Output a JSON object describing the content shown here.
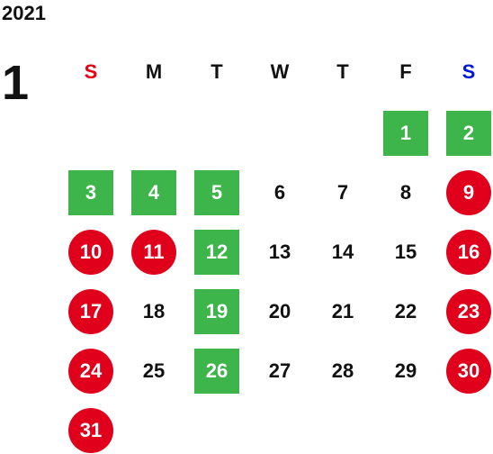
{
  "year": "2021",
  "month": "1",
  "weekdays": [
    "S",
    "M",
    "T",
    "W",
    "T",
    "F",
    "S"
  ],
  "colors": {
    "green": "#3db54a",
    "red": "#e0001b",
    "sunday": "#e60012",
    "saturday": "#0018d8"
  },
  "weeks": [
    [
      {
        "d": ""
      },
      {
        "d": ""
      },
      {
        "d": ""
      },
      {
        "d": ""
      },
      {
        "d": ""
      },
      {
        "d": "1",
        "t": "green"
      },
      {
        "d": "2",
        "t": "green"
      }
    ],
    [
      {
        "d": "3",
        "t": "green"
      },
      {
        "d": "4",
        "t": "green"
      },
      {
        "d": "5",
        "t": "green"
      },
      {
        "d": "6"
      },
      {
        "d": "7"
      },
      {
        "d": "8"
      },
      {
        "d": "9",
        "t": "red"
      }
    ],
    [
      {
        "d": "10",
        "t": "red"
      },
      {
        "d": "11",
        "t": "red"
      },
      {
        "d": "12",
        "t": "green"
      },
      {
        "d": "13"
      },
      {
        "d": "14"
      },
      {
        "d": "15"
      },
      {
        "d": "16",
        "t": "red"
      }
    ],
    [
      {
        "d": "17",
        "t": "red"
      },
      {
        "d": "18"
      },
      {
        "d": "19",
        "t": "green"
      },
      {
        "d": "20"
      },
      {
        "d": "21"
      },
      {
        "d": "22"
      },
      {
        "d": "23",
        "t": "red"
      }
    ],
    [
      {
        "d": "24",
        "t": "red"
      },
      {
        "d": "25"
      },
      {
        "d": "26",
        "t": "green"
      },
      {
        "d": "27"
      },
      {
        "d": "28"
      },
      {
        "d": "29"
      },
      {
        "d": "30",
        "t": "red"
      }
    ],
    [
      {
        "d": "31",
        "t": "red"
      },
      {
        "d": ""
      },
      {
        "d": ""
      },
      {
        "d": ""
      },
      {
        "d": ""
      },
      {
        "d": ""
      },
      {
        "d": ""
      }
    ]
  ]
}
